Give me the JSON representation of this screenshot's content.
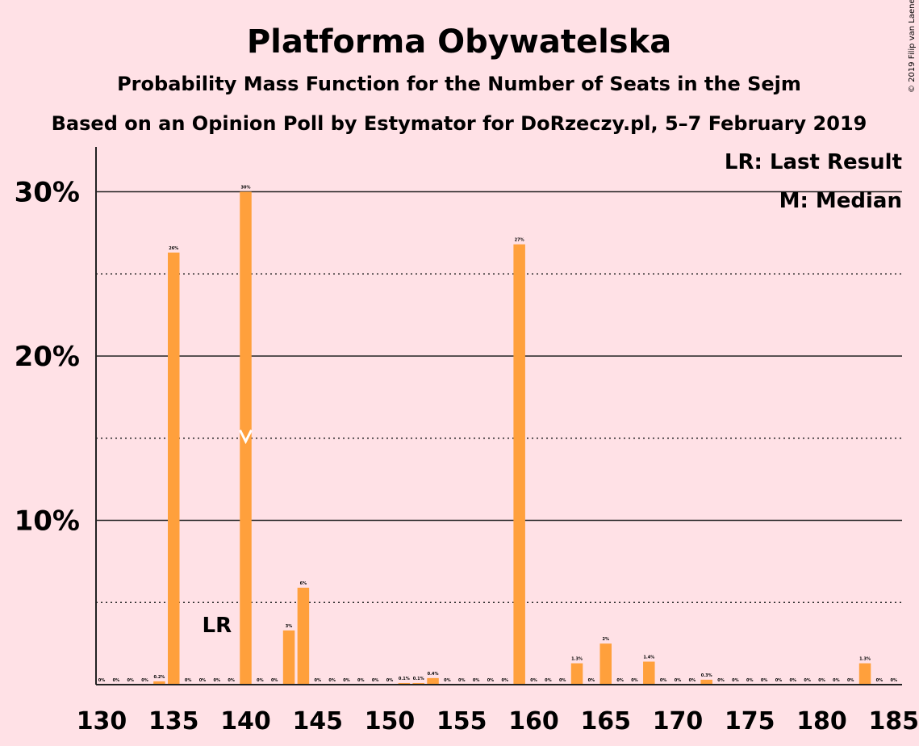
{
  "title": "Platforma Obywatelska",
  "subtitle1": "Probability Mass Function for the Number of Seats in the Sejm",
  "subtitle2": "Based on an Opinion Poll by Estymator for DoRzeczy.pl, 5–7 February 2019",
  "copyright": "© 2019 Filip van Laenen",
  "legend": {
    "lr": "LR: Last Result",
    "median": "M: Median"
  },
  "lr_label": "LR",
  "colors": {
    "bar": "#ffa03c",
    "background": "#ffe1e6",
    "text": "#222222"
  },
  "chart_data": {
    "type": "bar",
    "title": "Platforma Obywatelska",
    "xlabel": "",
    "ylabel": "",
    "xlim": [
      130,
      185
    ],
    "ylim": [
      0,
      32.7
    ],
    "y_ticks": [
      10,
      20,
      30
    ],
    "y_tick_labels": [
      "10%",
      "20%",
      "30%"
    ],
    "x_ticks": [
      130,
      135,
      140,
      145,
      150,
      155,
      160,
      165,
      170,
      175,
      180,
      185
    ],
    "last_result": 138,
    "median": 140,
    "grid": "solid at 10/20/30, dotted at 5/15/25",
    "legend_position": "top-right",
    "bars": [
      {
        "x": 130,
        "value": 0,
        "label": "0%"
      },
      {
        "x": 131,
        "value": 0,
        "label": "0%"
      },
      {
        "x": 132,
        "value": 0,
        "label": "0%"
      },
      {
        "x": 133,
        "value": 0,
        "label": "0%"
      },
      {
        "x": 134,
        "value": 0.2,
        "label": "0.2%"
      },
      {
        "x": 135,
        "value": 26.3,
        "label": "26%"
      },
      {
        "x": 136,
        "value": 0,
        "label": "0%"
      },
      {
        "x": 137,
        "value": 0,
        "label": "0%"
      },
      {
        "x": 138,
        "value": 0,
        "label": "0%"
      },
      {
        "x": 139,
        "value": 0,
        "label": "0%"
      },
      {
        "x": 140,
        "value": 30,
        "label": "30%"
      },
      {
        "x": 141,
        "value": 0,
        "label": "0%"
      },
      {
        "x": 142,
        "value": 0,
        "label": "0%"
      },
      {
        "x": 143,
        "value": 3.3,
        "label": "3%"
      },
      {
        "x": 144,
        "value": 5.9,
        "label": "6%"
      },
      {
        "x": 145,
        "value": 0,
        "label": "0%"
      },
      {
        "x": 146,
        "value": 0,
        "label": "0%"
      },
      {
        "x": 147,
        "value": 0,
        "label": "0%"
      },
      {
        "x": 148,
        "value": 0,
        "label": "0%"
      },
      {
        "x": 149,
        "value": 0,
        "label": "0%"
      },
      {
        "x": 150,
        "value": 0,
        "label": "0%"
      },
      {
        "x": 151,
        "value": 0.1,
        "label": "0.1%"
      },
      {
        "x": 152,
        "value": 0.1,
        "label": "0.1%"
      },
      {
        "x": 153,
        "value": 0.4,
        "label": "0.4%"
      },
      {
        "x": 154,
        "value": 0,
        "label": "0%"
      },
      {
        "x": 155,
        "value": 0,
        "label": "0%"
      },
      {
        "x": 156,
        "value": 0,
        "label": "0%"
      },
      {
        "x": 157,
        "value": 0,
        "label": "0%"
      },
      {
        "x": 158,
        "value": 0,
        "label": "0%"
      },
      {
        "x": 159,
        "value": 26.8,
        "label": "27%"
      },
      {
        "x": 160,
        "value": 0,
        "label": "0%"
      },
      {
        "x": 161,
        "value": 0,
        "label": "0%"
      },
      {
        "x": 162,
        "value": 0,
        "label": "0%"
      },
      {
        "x": 163,
        "value": 1.3,
        "label": "1.3%"
      },
      {
        "x": 164,
        "value": 0,
        "label": "0%"
      },
      {
        "x": 165,
        "value": 2.5,
        "label": "2%"
      },
      {
        "x": 166,
        "value": 0,
        "label": "0%"
      },
      {
        "x": 167,
        "value": 0,
        "label": "0%"
      },
      {
        "x": 168,
        "value": 1.4,
        "label": "1.4%"
      },
      {
        "x": 169,
        "value": 0,
        "label": "0%"
      },
      {
        "x": 170,
        "value": 0,
        "label": "0%"
      },
      {
        "x": 171,
        "value": 0,
        "label": "0%"
      },
      {
        "x": 172,
        "value": 0.3,
        "label": "0.3%"
      },
      {
        "x": 173,
        "value": 0,
        "label": "0%"
      },
      {
        "x": 174,
        "value": 0,
        "label": "0%"
      },
      {
        "x": 175,
        "value": 0,
        "label": "0%"
      },
      {
        "x": 176,
        "value": 0,
        "label": "0%"
      },
      {
        "x": 177,
        "value": 0,
        "label": "0%"
      },
      {
        "x": 178,
        "value": 0,
        "label": "0%"
      },
      {
        "x": 179,
        "value": 0,
        "label": "0%"
      },
      {
        "x": 180,
        "value": 0,
        "label": "0%"
      },
      {
        "x": 181,
        "value": 0,
        "label": "0%"
      },
      {
        "x": 182,
        "value": 0,
        "label": "0%"
      },
      {
        "x": 183,
        "value": 1.3,
        "label": "1.3%"
      },
      {
        "x": 184,
        "value": 0,
        "label": "0%"
      },
      {
        "x": 185,
        "value": 0,
        "label": "0%"
      }
    ]
  }
}
